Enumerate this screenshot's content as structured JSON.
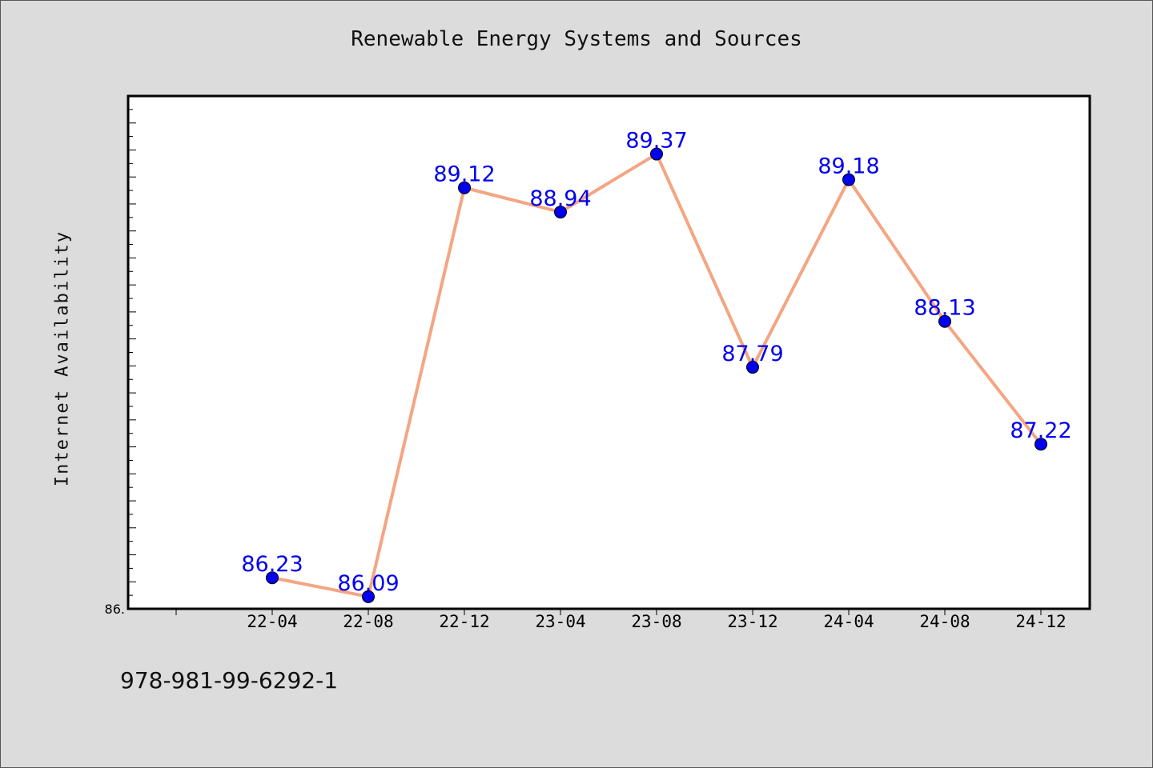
{
  "chart_data": {
    "type": "line",
    "title": "Renewable Energy Systems and Sources",
    "ylabel": "Internet Availability",
    "xlabel": "",
    "categories": [
      "22-04",
      "22-08",
      "22-12",
      "23-04",
      "23-08",
      "23-12",
      "24-04",
      "24-08",
      "24-12"
    ],
    "values": [
      86.23,
      86.09,
      89.12,
      88.94,
      89.37,
      87.79,
      89.18,
      88.13,
      87.22
    ],
    "data_labels": [
      "86.23",
      "86.09",
      "89.12",
      "88.94",
      "89.37",
      "87.79",
      "89.18",
      "88.13",
      "87.22"
    ],
    "ylim": [
      86.0,
      89.8
    ],
    "y_tick_labels": [
      "86."
    ],
    "grid": false,
    "line_color": "#f4a582",
    "marker_color": "#0000ee",
    "label_color": "#0000ee"
  },
  "footer": {
    "isbn": "978-981-99-6292-1"
  }
}
